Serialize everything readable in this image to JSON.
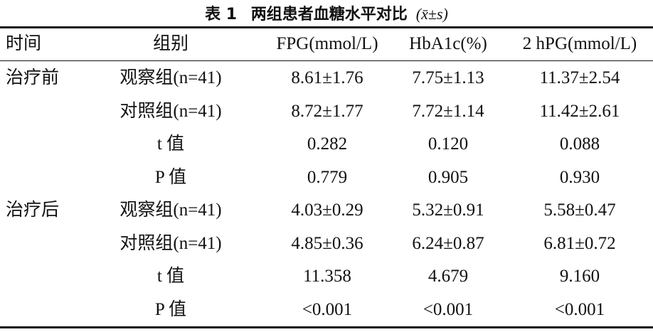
{
  "title_prefix": "表 1",
  "title": "两组患者血糖水平对比",
  "title_stat": "(x̄±s)",
  "table": {
    "header": [
      "时间",
      "组别",
      "FPG(mmol/L)",
      "HbA1c(%)",
      "2 hPG(mmol/L)"
    ],
    "sections": [
      {
        "period": "治疗前",
        "rows": [
          [
            "观察组(n=41)",
            "8.61±1.76",
            "7.75±1.13",
            "11.37±2.54"
          ],
          [
            "对照组(n=41)",
            "8.72±1.77",
            "7.72±1.14",
            "11.42±2.61"
          ],
          [
            "t 值",
            "0.282",
            "0.120",
            "0.088"
          ],
          [
            "P 值",
            "0.779",
            "0.905",
            "0.930"
          ]
        ]
      },
      {
        "period": "治疗后",
        "rows": [
          [
            "观察组(n=41)",
            "4.03±0.29",
            "5.32±0.91",
            "5.58±0.47"
          ],
          [
            "对照组(n=41)",
            "4.85±0.36",
            "6.24±0.87",
            "6.81±0.72"
          ],
          [
            "t 值",
            "11.358",
            "4.679",
            "9.160"
          ],
          [
            "P 值",
            "<0.001",
            "<0.001",
            "<0.001"
          ]
        ]
      }
    ]
  }
}
